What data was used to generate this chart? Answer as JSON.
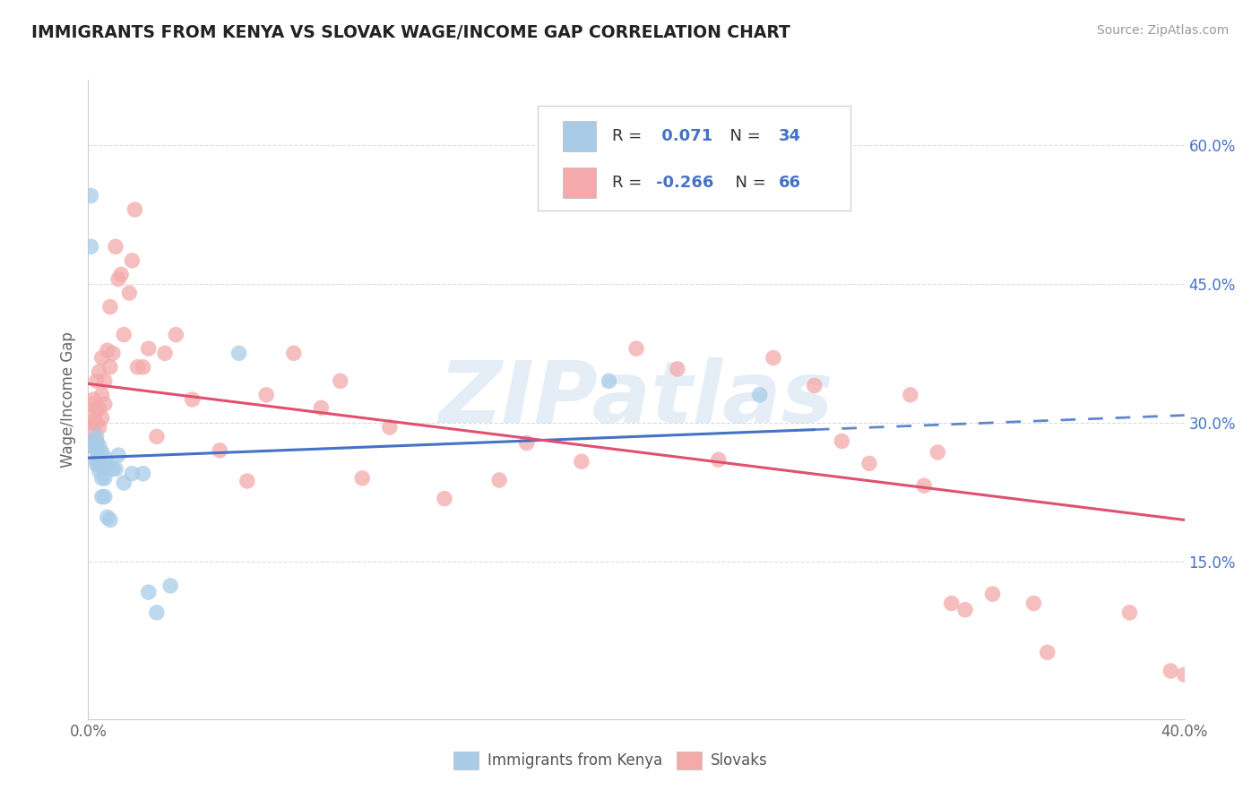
{
  "title": "IMMIGRANTS FROM KENYA VS SLOVAK WAGE/INCOME GAP CORRELATION CHART",
  "source": "Source: ZipAtlas.com",
  "ylabel": "Wage/Income Gap",
  "x_min": 0.0,
  "x_max": 0.4,
  "y_min": -0.02,
  "y_max": 0.67,
  "yticks": [
    0.15,
    0.3,
    0.45,
    0.6
  ],
  "ytick_labels": [
    "15.0%",
    "30.0%",
    "45.0%",
    "60.0%"
  ],
  "xticks": [
    0.0,
    0.1,
    0.2,
    0.3,
    0.4
  ],
  "xtick_labels": [
    "0.0%",
    "",
    "",
    "",
    "40.0%"
  ],
  "blue_color": "#a8cce8",
  "pink_color": "#f4aaaa",
  "blue_line_color": "#4472c4",
  "pink_line_color": "#e05070",
  "r_kenya": "0.071",
  "n_kenya": "34",
  "r_slovak": "-0.266",
  "n_slovak": "66",
  "label_kenya": "Immigrants from Kenya",
  "label_slovak": "Slovaks",
  "accent_color": "#4472c4",
  "background_color": "#ffffff",
  "grid_color": "#dddddd",
  "watermark_color": "#cddcef",
  "kenya_x": [
    0.001,
    0.001,
    0.002,
    0.002,
    0.003,
    0.003,
    0.003,
    0.003,
    0.003,
    0.004,
    0.004,
    0.004,
    0.004,
    0.005,
    0.005,
    0.005,
    0.006,
    0.006,
    0.006,
    0.007,
    0.007,
    0.008,
    0.009,
    0.01,
    0.011,
    0.013,
    0.016,
    0.02,
    0.022,
    0.025,
    0.03,
    0.055,
    0.19,
    0.245
  ],
  "kenya_y": [
    0.545,
    0.49,
    0.275,
    0.28,
    0.255,
    0.26,
    0.27,
    0.275,
    0.285,
    0.248,
    0.255,
    0.26,
    0.275,
    0.22,
    0.24,
    0.268,
    0.22,
    0.24,
    0.262,
    0.198,
    0.255,
    0.195,
    0.25,
    0.25,
    0.265,
    0.235,
    0.245,
    0.245,
    0.117,
    0.095,
    0.124,
    0.375,
    0.345,
    0.33
  ],
  "slovak_x": [
    0.001,
    0.001,
    0.001,
    0.002,
    0.002,
    0.002,
    0.003,
    0.003,
    0.003,
    0.003,
    0.004,
    0.004,
    0.004,
    0.005,
    0.005,
    0.005,
    0.006,
    0.006,
    0.007,
    0.008,
    0.008,
    0.009,
    0.01,
    0.011,
    0.012,
    0.013,
    0.015,
    0.016,
    0.017,
    0.018,
    0.02,
    0.022,
    0.025,
    0.028,
    0.032,
    0.038,
    0.048,
    0.058,
    0.065,
    0.075,
    0.085,
    0.092,
    0.1,
    0.11,
    0.13,
    0.15,
    0.16,
    0.18,
    0.2,
    0.215,
    0.23,
    0.25,
    0.265,
    0.275,
    0.285,
    0.3,
    0.305,
    0.31,
    0.315,
    0.32,
    0.33,
    0.345,
    0.35,
    0.38,
    0.395,
    0.4
  ],
  "slovak_y": [
    0.275,
    0.3,
    0.32,
    0.29,
    0.305,
    0.325,
    0.28,
    0.3,
    0.315,
    0.345,
    0.295,
    0.315,
    0.355,
    0.305,
    0.33,
    0.37,
    0.32,
    0.345,
    0.378,
    0.36,
    0.425,
    0.375,
    0.49,
    0.455,
    0.46,
    0.395,
    0.44,
    0.475,
    0.53,
    0.36,
    0.36,
    0.38,
    0.285,
    0.375,
    0.395,
    0.325,
    0.27,
    0.237,
    0.33,
    0.375,
    0.316,
    0.345,
    0.24,
    0.295,
    0.218,
    0.238,
    0.278,
    0.258,
    0.38,
    0.358,
    0.26,
    0.37,
    0.34,
    0.28,
    0.256,
    0.33,
    0.232,
    0.268,
    0.105,
    0.098,
    0.115,
    0.105,
    0.052,
    0.095,
    0.032,
    0.028
  ]
}
